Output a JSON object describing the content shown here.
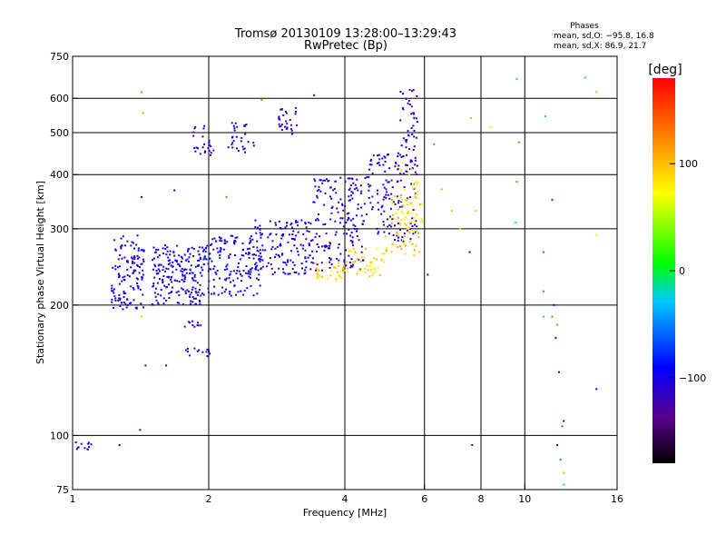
{
  "chart_data": {
    "type": "scatter",
    "title": "Tromsø 20130109 13:28:00–13:29:43",
    "subtitle": "RwPretec (Bp)",
    "xlabel": "Frequency [MHz]",
    "ylabel": "Stationary phase Virtual Height [km]",
    "x_scale": "log",
    "y_scale": "log",
    "xlim": [
      1,
      16
    ],
    "ylim": [
      75,
      750
    ],
    "grid": true,
    "x_ticks": [
      {
        "value": 1,
        "label": "1"
      },
      {
        "value": 2,
        "label": "2"
      },
      {
        "value": 4,
        "label": "4"
      },
      {
        "value": 6,
        "label": "6"
      },
      {
        "value": 8,
        "label": "8"
      },
      {
        "value": 10,
        "label": "10"
      },
      {
        "value": 16,
        "label": "16"
      }
    ],
    "x_gridlines": [
      2,
      4,
      6,
      8,
      10
    ],
    "y_ticks": [
      {
        "value": 75,
        "label": "75"
      },
      {
        "value": 100,
        "label": "100"
      },
      {
        "value": 200,
        "label": "200"
      },
      {
        "value": 300,
        "label": "300"
      },
      {
        "value": 400,
        "label": "400"
      },
      {
        "value": 500,
        "label": "500"
      },
      {
        "value": 600,
        "label": "600"
      },
      {
        "value": 750,
        "label": "750"
      }
    ],
    "y_gridlines": [
      100,
      200,
      300,
      400,
      500,
      600
    ],
    "phase_stats": {
      "heading": "Phases",
      "line_o": "mean, sd,O: −95.8, 16.8",
      "line_x": "mean, sd,X:  86.9, 21.7"
    },
    "colorbar": {
      "label": "[deg]",
      "range": [
        -180,
        180
      ],
      "ticks": [
        {
          "value": 100,
          "label": "100"
        },
        {
          "value": 0,
          "label": "0"
        },
        {
          "value": -100,
          "label": "−100"
        }
      ],
      "colors": [
        "#000000",
        "#5a0090",
        "#0000ff",
        "#00c8ff",
        "#00ff00",
        "#ffff00",
        "#ff8000",
        "#ff0000"
      ]
    },
    "o_mode_clusters": [
      {
        "x": [
          1.0,
          1.1
        ],
        "y": [
          92,
          97
        ],
        "phase": -100,
        "n": 12
      },
      {
        "x": [
          1.22,
          1.44
        ],
        "y": [
          195,
          290
        ],
        "phase": -105,
        "n": 130
      },
      {
        "x": [
          1.5,
          1.95
        ],
        "y": [
          200,
          275
        ],
        "phase": -100,
        "n": 200
      },
      {
        "x": [
          1.95,
          2.6
        ],
        "y": [
          210,
          290
        ],
        "phase": -95,
        "n": 160
      },
      {
        "x": [
          2.5,
          3.4
        ],
        "y": [
          235,
          315
        ],
        "phase": -105,
        "n": 150
      },
      {
        "x": [
          3.4,
          4.4
        ],
        "y": [
          240,
          395
        ],
        "phase": -110,
        "n": 170
      },
      {
        "x": [
          4.4,
          5.8
        ],
        "y": [
          280,
          450
        ],
        "phase": -105,
        "n": 150
      },
      {
        "x": [
          5.3,
          5.8
        ],
        "y": [
          450,
          640
        ],
        "phase": -110,
        "n": 40
      },
      {
        "x": [
          1.85,
          2.05
        ],
        "y": [
          440,
          520
        ],
        "phase": -110,
        "n": 25
      },
      {
        "x": [
          2.2,
          2.55
        ],
        "y": [
          450,
          530
        ],
        "phase": -105,
        "n": 30
      },
      {
        "x": [
          2.85,
          3.15
        ],
        "y": [
          490,
          570
        ],
        "phase": -120,
        "n": 30
      },
      {
        "x": [
          1.78,
          2.02
        ],
        "y": [
          152,
          160
        ],
        "phase": -110,
        "n": 14
      },
      {
        "x": [
          1.75,
          1.95
        ],
        "y": [
          178,
          184
        ],
        "phase": -110,
        "n": 10
      }
    ],
    "x_mode_clusters": [
      {
        "x": [
          3.4,
          4.0
        ],
        "y": [
          228,
          250
        ],
        "phase": 90,
        "n": 35
      },
      {
        "x": [
          4.0,
          4.9
        ],
        "y": [
          232,
          270
        ],
        "phase": 85,
        "n": 45
      },
      {
        "x": [
          4.9,
          5.9
        ],
        "y": [
          260,
          360
        ],
        "phase": 95,
        "n": 55
      },
      {
        "x": [
          5.3,
          5.95
        ],
        "y": [
          300,
          430
        ],
        "phase": 80,
        "n": 40
      }
    ],
    "scattered_points": [
      {
        "x": 1.42,
        "y": 620,
        "phase": 130
      },
      {
        "x": 1.43,
        "y": 555,
        "phase": 110
      },
      {
        "x": 1.42,
        "y": 355,
        "phase": -100
      },
      {
        "x": 1.42,
        "y": 188,
        "phase": 100
      },
      {
        "x": 1.45,
        "y": 145,
        "phase": -100
      },
      {
        "x": 1.41,
        "y": 103,
        "phase": -100
      },
      {
        "x": 1.27,
        "y": 95,
        "phase": -100
      },
      {
        "x": 1.61,
        "y": 145,
        "phase": -100
      },
      {
        "x": 1.68,
        "y": 368,
        "phase": -100
      },
      {
        "x": 2.19,
        "y": 355,
        "phase": 140
      },
      {
        "x": 2.62,
        "y": 595,
        "phase": 130
      },
      {
        "x": 3.42,
        "y": 610,
        "phase": -100
      },
      {
        "x": 6.3,
        "y": 470,
        "phase": 140
      },
      {
        "x": 6.55,
        "y": 370,
        "phase": 110
      },
      {
        "x": 6.9,
        "y": 330,
        "phase": 100
      },
      {
        "x": 7.2,
        "y": 300,
        "phase": 90
      },
      {
        "x": 7.55,
        "y": 265,
        "phase": -100
      },
      {
        "x": 7.6,
        "y": 540,
        "phase": 110
      },
      {
        "x": 7.8,
        "y": 330,
        "phase": 100
      },
      {
        "x": 6.1,
        "y": 235,
        "phase": -100
      },
      {
        "x": 7.65,
        "y": 95,
        "phase": -100
      },
      {
        "x": 8.4,
        "y": 515,
        "phase": 60
      },
      {
        "x": 9.6,
        "y": 665,
        "phase": 0
      },
      {
        "x": 9.7,
        "y": 475,
        "phase": 140
      },
      {
        "x": 9.6,
        "y": 385,
        "phase": 140
      },
      {
        "x": 9.55,
        "y": 310,
        "phase": 0
      },
      {
        "x": 11.1,
        "y": 545,
        "phase": -30
      },
      {
        "x": 11.5,
        "y": 350,
        "phase": 180
      },
      {
        "x": 11.0,
        "y": 265,
        "phase": 160
      },
      {
        "x": 11.0,
        "y": 215,
        "phase": 150
      },
      {
        "x": 11.6,
        "y": 200,
        "phase": -100
      },
      {
        "x": 11.0,
        "y": 188,
        "phase": -10
      },
      {
        "x": 11.5,
        "y": 188,
        "phase": 140
      },
      {
        "x": 11.8,
        "y": 180,
        "phase": 130
      },
      {
        "x": 11.7,
        "y": 168,
        "phase": -100
      },
      {
        "x": 11.9,
        "y": 140,
        "phase": -100
      },
      {
        "x": 12.2,
        "y": 108,
        "phase": -100
      },
      {
        "x": 12.1,
        "y": 105,
        "phase": 160
      },
      {
        "x": 11.8,
        "y": 95,
        "phase": -100
      },
      {
        "x": 12.0,
        "y": 88,
        "phase": -50
      },
      {
        "x": 12.2,
        "y": 82,
        "phase": 110
      },
      {
        "x": 12.2,
        "y": 77,
        "phase": 0
      },
      {
        "x": 13.6,
        "y": 670,
        "phase": -20
      },
      {
        "x": 14.4,
        "y": 620,
        "phase": 110
      },
      {
        "x": 14.4,
        "y": 290,
        "phase": 60
      },
      {
        "x": 14.4,
        "y": 128,
        "phase": -100
      }
    ]
  }
}
